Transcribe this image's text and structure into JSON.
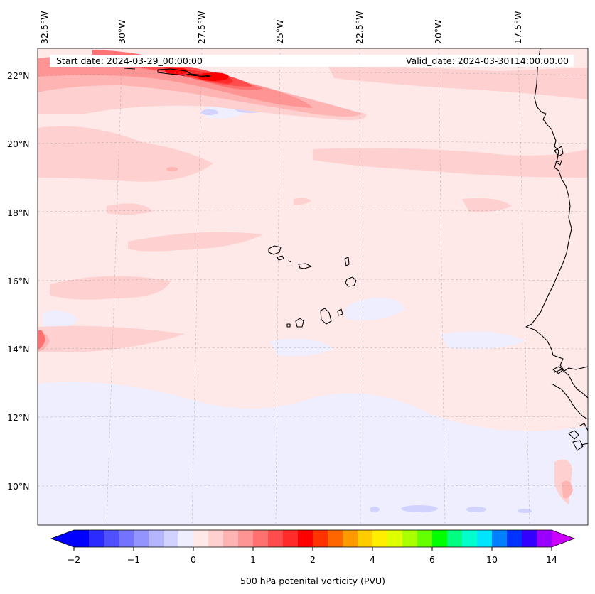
{
  "map": {
    "start_date_label": "Start date: 2024-03-29_00:00:00",
    "valid_date_label": "Valid_date: 2024-03-30T14:00:00.00",
    "longitude_labels": [
      "32.5°W",
      "30°W",
      "27.5°W",
      "25°W",
      "22.5°W",
      "20°W",
      "17.5°W"
    ],
    "latitude_labels": [
      "22°N",
      "20°N",
      "18°N",
      "16°N",
      "14°N",
      "12°N",
      "10°N"
    ],
    "field": "500 hPa potential vorticity",
    "units": "PVU"
  },
  "colorbar": {
    "label": "500 hPa potenital vorticity (PVU)",
    "tick_labels": [
      "−2",
      "−1",
      "0",
      "1",
      "2",
      "4",
      "6",
      "10",
      "14"
    ],
    "colors": [
      "#0000ff",
      "#2b2bff",
      "#5050ff",
      "#7373ff",
      "#9494ff",
      "#b4b4ff",
      "#d2d2ff",
      "#eeeeff",
      "#ffe8e8",
      "#ffd0d0",
      "#ffb4b4",
      "#ff9494",
      "#ff7070",
      "#ff4c4c",
      "#ff2a2a",
      "#ff0000",
      "#ff3300",
      "#ff6600",
      "#ff9900",
      "#ffcc00",
      "#ffee00",
      "#ddff00",
      "#aaff00",
      "#66ff00",
      "#00ff00",
      "#00ff80",
      "#00ffcc",
      "#00e5ff",
      "#0080ff",
      "#0033ff",
      "#3300ff",
      "#9900ff"
    ],
    "under_color": "#0000ff",
    "over_color": "#cc00ff"
  }
}
